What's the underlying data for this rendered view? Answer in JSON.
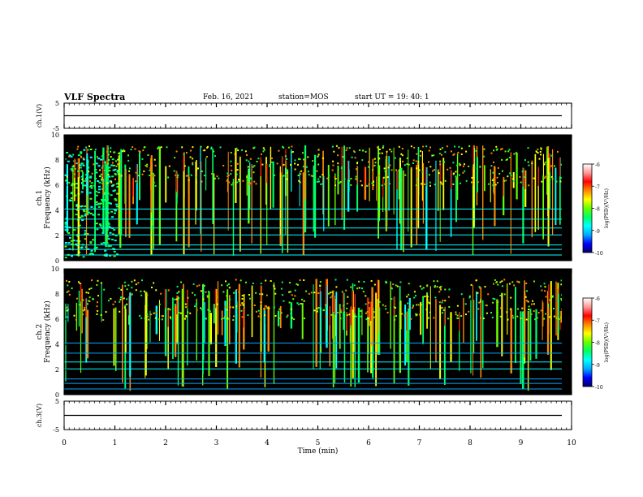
{
  "header": {
    "title": "VLF Spectra",
    "date": "Feb. 16, 2021",
    "station": "station=MOS",
    "start": "start UT = 19: 40: 1"
  },
  "colors": {
    "colormap": [
      "#000066",
      "#0000ff",
      "#00aaff",
      "#00ffff",
      "#00ff66",
      "#66ff00",
      "#ffff00",
      "#ff8800",
      "#ff0000",
      "#ff9999",
      "#ffffff"
    ],
    "trace": "#000000",
    "background": "#000000"
  },
  "chart_data": [
    {
      "type": "line",
      "ylabel": "ch.1(V)",
      "ylim": [
        -5,
        5
      ],
      "yticks": [
        "5",
        "-5"
      ],
      "xlim": [
        0,
        10
      ],
      "x": [
        0,
        10
      ],
      "series": [
        {
          "values": [
            0,
            0
          ]
        }
      ]
    },
    {
      "type": "heatmap",
      "ylabel_prefix": "ch.1",
      "ylabel": "Frequency (kHz)",
      "ylim": [
        0,
        10
      ],
      "yticks": [
        "0",
        "2",
        "4",
        "6",
        "8",
        "10"
      ],
      "xlim": [
        0,
        10
      ],
      "colorbar": {
        "label": "log(PSD)(V²/Hz)",
        "range": [
          -10,
          -6
        ],
        "ticks": [
          "-6",
          "-7",
          "-8",
          "-9",
          "-10"
        ]
      }
    },
    {
      "type": "heatmap",
      "ylabel_prefix": "ch.2",
      "ylabel": "Frequency (kHz)",
      "ylim": [
        0,
        10
      ],
      "yticks": [
        "0",
        "2",
        "4",
        "6",
        "8",
        "10"
      ],
      "xlim": [
        0,
        10
      ],
      "colorbar": {
        "label": "log(PSD)(V²/Hz)",
        "range": [
          -10,
          -6
        ],
        "ticks": [
          "-6",
          "-7",
          "-8",
          "-9",
          "-10"
        ]
      }
    },
    {
      "type": "line",
      "ylabel": "ch.3(V)",
      "ylim": [
        -5,
        5
      ],
      "yticks": [
        "5",
        "-5"
      ],
      "xlim": [
        0,
        10
      ],
      "x": [
        0,
        10
      ],
      "series": [
        {
          "values": [
            0,
            0
          ]
        }
      ]
    }
  ],
  "xaxis": {
    "label": "Time (min)",
    "ticks": [
      "0",
      "1",
      "2",
      "3",
      "4",
      "5",
      "6",
      "7",
      "8",
      "9",
      "10"
    ]
  }
}
